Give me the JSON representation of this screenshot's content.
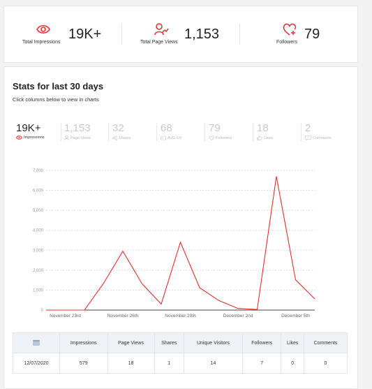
{
  "summary": {
    "impressions": {
      "value": "19K+",
      "label": "Total Impressions"
    },
    "page_views": {
      "value": "1,153",
      "label": "Total Page Views"
    },
    "followers": {
      "value": "79",
      "label": "Followers"
    }
  },
  "stats": {
    "title": "Stats for last 30 days",
    "subtitle": "Click columns below to view in charts",
    "tabs": [
      {
        "value": "19K+",
        "label": "Impressions",
        "icon": "eye-icon",
        "active": true
      },
      {
        "value": "1,153",
        "label": "Page Views",
        "icon": "user-icon",
        "active": false
      },
      {
        "value": "32",
        "label": "Shares",
        "icon": "share-icon",
        "active": false
      },
      {
        "value": "68",
        "label": "AVG UV",
        "icon": "card-icon",
        "active": false
      },
      {
        "value": "79",
        "label": "Followers",
        "icon": "heart-icon",
        "active": false
      },
      {
        "value": "18",
        "label": "Likes",
        "icon": "thumbs-up-icon",
        "active": false
      },
      {
        "value": "2",
        "label": "Comments",
        "icon": "comment-icon",
        "active": false
      }
    ]
  },
  "chart_data": {
    "type": "line",
    "color": "#e03030",
    "y_ticks": [
      "0",
      "1,000",
      "2,000",
      "3,000",
      "4,000",
      "5,000",
      "6,000",
      "7,000"
    ],
    "ylim": [
      0,
      7000
    ],
    "x_tick_labels": [
      {
        "label": "November 23rd",
        "index": 1
      },
      {
        "label": "November 26th",
        "index": 4
      },
      {
        "label": "November 29th",
        "index": 7
      },
      {
        "label": "December 2nd",
        "index": 10
      },
      {
        "label": "December 5th",
        "index": 13
      }
    ],
    "values": [
      0,
      0,
      0,
      1350,
      2950,
      1320,
      300,
      3400,
      1120,
      480,
      80,
      30,
      6700,
      1520,
      560
    ],
    "grid": true
  },
  "table": {
    "columns": [
      "",
      "Impressions",
      "Page Views",
      "Shares",
      "Unique Visitors",
      "Followers",
      "Likes",
      "Comments"
    ],
    "rows": [
      [
        "12/07/2020",
        "579",
        "18",
        "1",
        "14",
        "7",
        "0",
        "0"
      ]
    ]
  },
  "colors": {
    "accent": "#e03030",
    "muted": "#c9c9c9"
  }
}
